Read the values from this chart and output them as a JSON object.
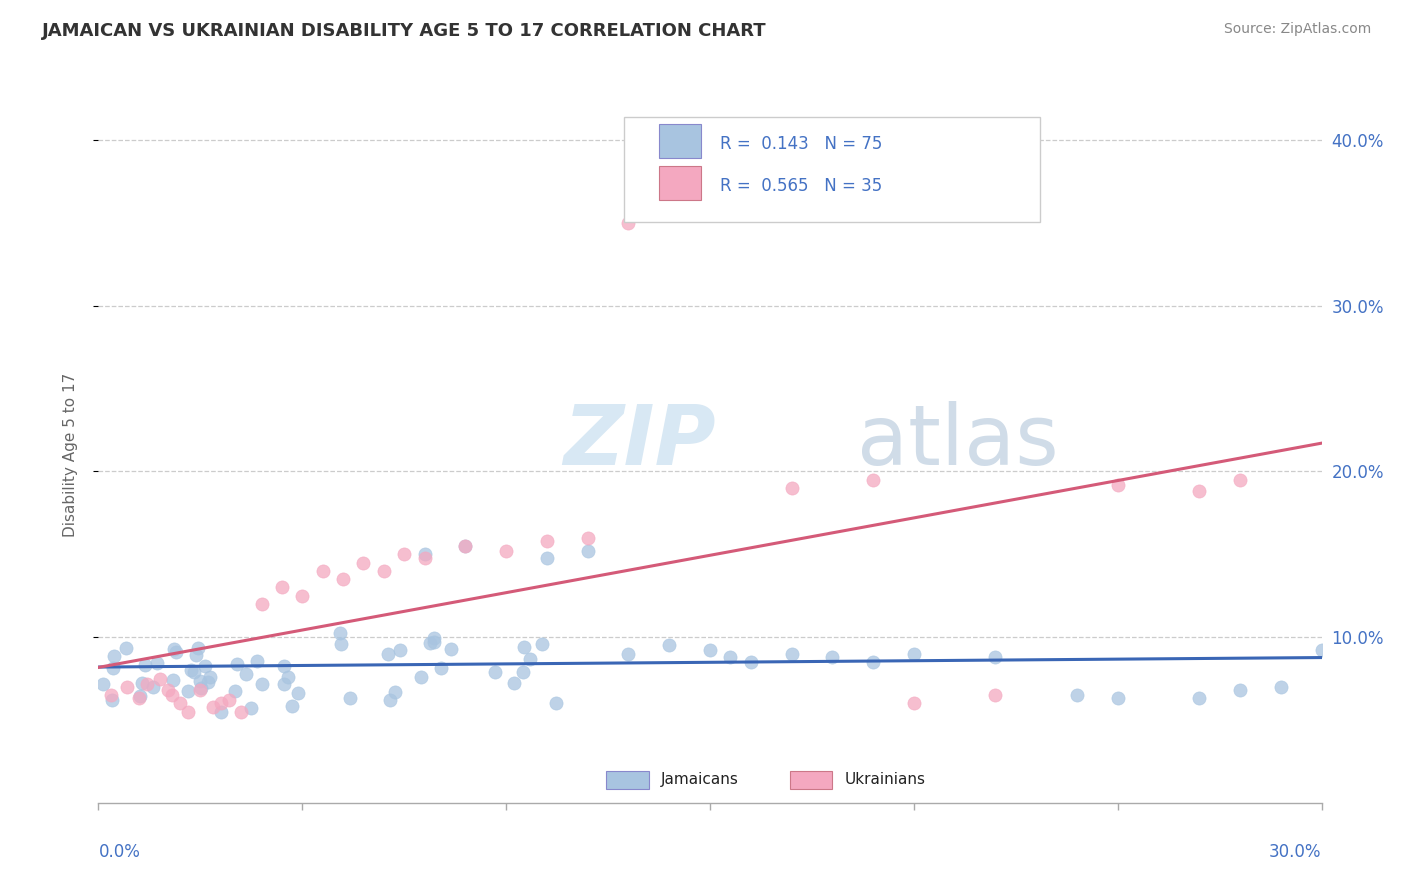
{
  "title": "JAMAICAN VS UKRAINIAN DISABILITY AGE 5 TO 17 CORRELATION CHART",
  "source": "Source: ZipAtlas.com",
  "ylabel": "Disability Age 5 to 17",
  "xmin": 0.0,
  "xmax": 0.3,
  "ymin": 0.0,
  "ymax": 0.42,
  "yticks": [
    0.1,
    0.2,
    0.3,
    0.4
  ],
  "ytick_labels": [
    "10.0%",
    "20.0%",
    "30.0%",
    "40.0%"
  ],
  "jamaican_color": "#a8c4e0",
  "ukrainian_color": "#f4a8c0",
  "jamaican_line_color": "#3a66b5",
  "ukrainian_line_color": "#d45a78",
  "legend_R1": "R =  0.143",
  "legend_N1": "N = 75",
  "legend_R2": "R =  0.565",
  "legend_N2": "N = 35",
  "legend_bottom_jamaicans": "Jamaicans",
  "legend_bottom_ukrainians": "Ukrainians",
  "watermark_zip": "ZIP",
  "watermark_atlas": "atlas"
}
